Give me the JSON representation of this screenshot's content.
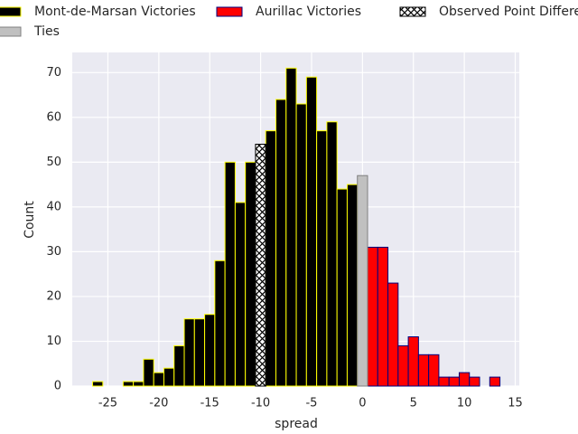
{
  "chart_data": {
    "type": "histogram",
    "xlabel": "spread",
    "ylabel": "Count",
    "xlim": [
      -28.5,
      15.4
    ],
    "ylim": [
      0,
      74.5
    ],
    "xticks": [
      -25,
      -20,
      -15,
      -10,
      -5,
      0,
      5,
      10,
      15
    ],
    "yticks": [
      0,
      10,
      20,
      30,
      40,
      50,
      60,
      70
    ],
    "grid": true,
    "series": [
      {
        "name": "Mont-de-Marsan Victories",
        "color": "#000000",
        "edgecolor": "#ffff00",
        "bins": [
          -26.5,
          -25.5,
          -24.5,
          -23.5,
          -22.5,
          -21.5,
          -20.5,
          -19.5,
          -18.5,
          -17.5,
          -16.5,
          -15.5,
          -14.5,
          -13.5,
          -12.5,
          -11.5,
          -10.5,
          -9.5,
          -8.5,
          -7.5,
          -6.5,
          -5.5,
          -4.5,
          -3.5,
          -2.5,
          -1.5,
          -0.5
        ],
        "counts": [
          1,
          0,
          0,
          1,
          1,
          6,
          3,
          4,
          9,
          15,
          15,
          16,
          28,
          50,
          41,
          50,
          null,
          57,
          64,
          71,
          63,
          69,
          57,
          59,
          44,
          45
        ]
      },
      {
        "name": "Aurillac Victories",
        "color": "#ff0000",
        "edgecolor": "#000080",
        "bins": [
          0.5,
          1.5,
          2.5,
          3.5,
          4.5,
          5.5,
          6.5,
          7.5,
          8.5,
          9.5,
          10.5,
          11.5,
          12.5,
          13.5
        ],
        "counts": [
          31,
          31,
          23,
          9,
          11,
          7,
          7,
          2,
          2,
          3,
          2,
          0,
          2
        ]
      },
      {
        "name": "Observed Point Difference",
        "color": "#ffffff",
        "edgecolor": "#000000",
        "hatch": "xx",
        "bins": [
          -10.5,
          -9.5
        ],
        "counts": [
          54
        ]
      },
      {
        "name": "Ties",
        "color": "#c0c0c0",
        "edgecolor": "#808080",
        "bins": [
          -0.5,
          0.5
        ],
        "counts": [
          47
        ]
      }
    ]
  }
}
